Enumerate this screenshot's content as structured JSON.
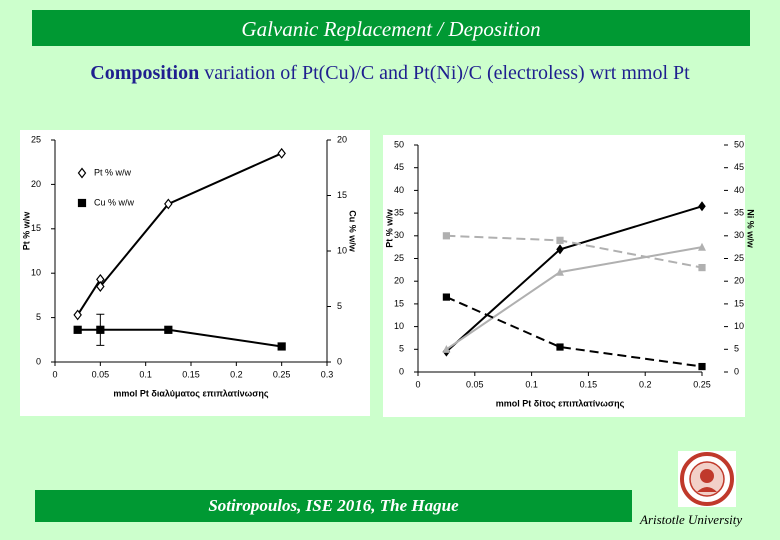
{
  "slide": {
    "header": "Galvanic Replacement / Deposition",
    "subtitle_bold": "Composition",
    "subtitle_rest": "variation of Pt(Cu)/C and Pt(Ni)/C (electroless) wrt mmol Pt",
    "footer": "Sotiropoulos, ISE 2016, The Hague",
    "affiliation": "Aristotle University"
  },
  "chart_data": [
    {
      "type": "scatter",
      "xlabel": "mmol Pt διαλύματος επιπλατίνωσης",
      "ylabel": "Pt % w/w",
      "y2label": "Cu % w/w",
      "xlim": [
        0,
        0.3
      ],
      "xticks": [
        0,
        0.05,
        0.1,
        0.15,
        0.2,
        0.25,
        0.3
      ],
      "ylim": [
        0,
        25
      ],
      "yticks": [
        0,
        5,
        10,
        15,
        20,
        25
      ],
      "y2lim": [
        0,
        20
      ],
      "y2ticks": [
        0,
        5,
        10,
        15,
        20
      ],
      "legend": "upper left",
      "series": [
        {
          "name": "Pt % w/w",
          "color": "#000000",
          "marker": "diamond",
          "filled": false,
          "line": "solid",
          "x": [
            0.025,
            0.05,
            0.05,
            0.125,
            0.25
          ],
          "values": [
            5.3,
            9.3,
            8.5,
            17.8,
            23.5
          ]
        },
        {
          "name": "Cu % w/w",
          "color": "#000000",
          "marker": "square",
          "filled": true,
          "line": "solid",
          "axis": "y2",
          "x": [
            0.025,
            0.05,
            0.125,
            0.25
          ],
          "values": [
            2.9,
            2.9,
            2.9,
            1.4
          ],
          "errors": [
            null,
            1.4,
            null,
            null
          ]
        }
      ]
    },
    {
      "type": "scatter",
      "xlabel": "mmol Pt δίτος επιπλατίνωσης",
      "ylabel": "Pt % w/w",
      "y2label": "Ni % w/w",
      "xlim": [
        0,
        0.25
      ],
      "xticks": [
        0,
        0.05,
        0.1,
        0.15,
        0.2,
        0.25
      ],
      "ylim": [
        0,
        50
      ],
      "yticks": [
        0,
        5,
        10,
        15,
        20,
        25,
        30,
        35,
        40,
        45,
        50
      ],
      "y2lim": [
        0,
        50
      ],
      "y2ticks": [
        0,
        5,
        10,
        15,
        20,
        25,
        30,
        35,
        40,
        45,
        50
      ],
      "series": [
        {
          "color": "#000000",
          "marker": "diamond",
          "filled": true,
          "line": "solid",
          "x": [
            0.025,
            0.125,
            0.25
          ],
          "values": [
            4.5,
            27,
            36.5
          ]
        },
        {
          "color": "#b0b0b0",
          "marker": "triangle",
          "filled": true,
          "line": "solid",
          "x": [
            0.025,
            0.125,
            0.25
          ],
          "values": [
            5,
            22,
            27.5
          ]
        },
        {
          "color": "#b0b0b0",
          "marker": "square",
          "filled": true,
          "line": "dashed",
          "axis": "y2",
          "x": [
            0.025,
            0.125,
            0.25
          ],
          "values": [
            30,
            29,
            23
          ]
        },
        {
          "color": "#000000",
          "marker": "square",
          "filled": true,
          "line": "dashed",
          "axis": "y2",
          "x": [
            0.025,
            0.125,
            0.25
          ],
          "values": [
            16.5,
            5.5,
            1.2
          ]
        }
      ]
    }
  ]
}
